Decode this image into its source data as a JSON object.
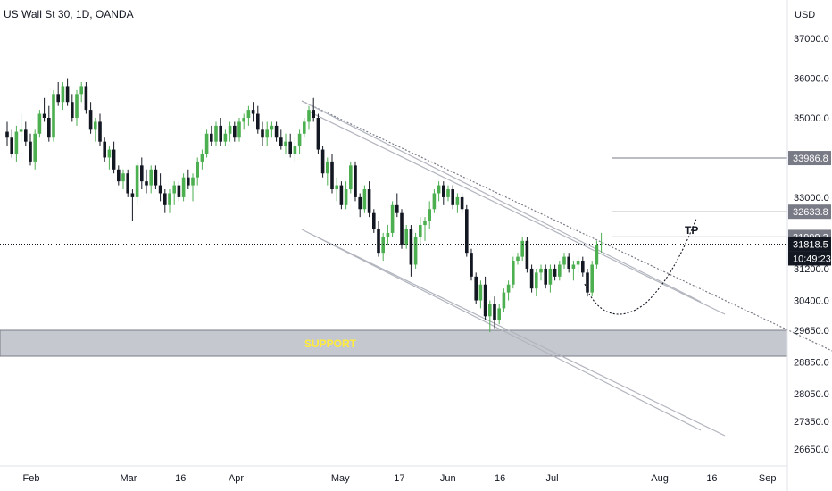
{
  "chart_data": {
    "type": "candlestick",
    "title": "US Wall St 30, 1D, OANDA",
    "currency": "USD",
    "colors": {
      "up": "#26a69a",
      "up_fill": "#4caf50",
      "down": "#131722",
      "support_band": "#b2b5be",
      "support_text": "#ffeb3b",
      "level_line": "#787b86",
      "price_line": "#131722",
      "channel": "#b2b5be",
      "trend": "#787b86"
    },
    "y_axis": {
      "min": 26650,
      "max": 37000,
      "ticks": [
        "37000.0",
        "36000.0",
        "35000.0",
        "33000.0",
        "31200.0",
        "30400.0",
        "29650.0",
        "28850.0",
        "28050.0",
        "27350.0",
        "26650.0"
      ],
      "tick_values": [
        37000,
        36000,
        35000,
        33000,
        31200,
        30400,
        29650,
        28850,
        28050,
        27350,
        26650
      ]
    },
    "x_axis": {
      "ticks": [
        "Feb",
        "Mar",
        "16",
        "Apr",
        "May",
        "17",
        "Jun",
        "16",
        "Jul",
        "Aug",
        "16",
        "Sep"
      ],
      "tick_days": [
        0,
        28,
        43,
        59,
        89,
        106,
        120,
        135,
        150,
        181,
        196,
        212
      ]
    },
    "price_labels": [
      {
        "text": "33986.8",
        "value": 33986.8,
        "style": "level"
      },
      {
        "text": "32633.8",
        "value": 32633.8,
        "style": "level"
      },
      {
        "text": "31999.2",
        "value": 31999.2,
        "style": "level"
      },
      {
        "text": "31818.5",
        "value": 31818.5,
        "style": "current"
      },
      {
        "text": "10:49:23",
        "value": 31818.5,
        "style": "countdown"
      }
    ],
    "levels": [
      {
        "value": 33986.8,
        "from_day": 164
      },
      {
        "value": 32633.8,
        "from_day": 164
      },
      {
        "value": 31999.2,
        "from_day": 164
      }
    ],
    "current_price": 31818.5,
    "support": {
      "label": "SUPPORT",
      "low": 29000,
      "high": 29700
    },
    "annotations": [
      {
        "text": "TP",
        "day": 183,
        "value": 32100
      }
    ],
    "candles": [
      [
        -8,
        34650,
        34900,
        34300,
        34500
      ],
      [
        -7,
        34500,
        34700,
        34000,
        34100
      ],
      [
        -6,
        34100,
        34800,
        33900,
        34650
      ],
      [
        -5,
        34650,
        35100,
        34400,
        34700
      ],
      [
        -4,
        34700,
        34900,
        34300,
        34400
      ],
      [
        -3,
        34400,
        34600,
        33800,
        33900
      ],
      [
        -2,
        33900,
        34700,
        33700,
        34600
      ],
      [
        -1,
        34600,
        35200,
        34500,
        35100
      ],
      [
        0,
        35100,
        35500,
        34900,
        35000
      ],
      [
        1,
        35000,
        35300,
        34400,
        34500
      ],
      [
        2,
        34500,
        35700,
        34400,
        35600
      ],
      [
        3,
        35600,
        35900,
        35300,
        35400
      ],
      [
        4,
        35400,
        35900,
        35200,
        35800
      ],
      [
        5,
        35800,
        36000,
        35300,
        35400
      ],
      [
        6,
        35400,
        35600,
        34900,
        35000
      ],
      [
        7,
        35000,
        35700,
        34800,
        35600
      ],
      [
        8,
        35600,
        35900,
        35400,
        35800
      ],
      [
        9,
        35800,
        35900,
        35100,
        35200
      ],
      [
        10,
        35200,
        35400,
        34600,
        34700
      ],
      [
        11,
        34700,
        35000,
        34400,
        34900
      ],
      [
        12,
        34900,
        35100,
        34300,
        34400
      ],
      [
        13,
        34400,
        34500,
        33900,
        34000
      ],
      [
        14,
        34000,
        34300,
        33700,
        34200
      ],
      [
        15,
        34200,
        34400,
        33600,
        33700
      ],
      [
        16,
        33700,
        33800,
        33300,
        33400
      ],
      [
        17,
        33400,
        33700,
        33200,
        33600
      ],
      [
        18,
        33600,
        33700,
        33000,
        33100
      ],
      [
        19,
        33100,
        33200,
        32400,
        33000
      ],
      [
        20,
        33000,
        33900,
        32800,
        33800
      ],
      [
        21,
        33800,
        34000,
        33200,
        33400
      ],
      [
        22,
        33400,
        33700,
        33100,
        33300
      ],
      [
        23,
        33300,
        33800,
        33100,
        33700
      ],
      [
        24,
        33700,
        33800,
        33200,
        33300
      ],
      [
        25,
        33300,
        33600,
        32900,
        33100
      ],
      [
        26,
        33100,
        33200,
        32600,
        32800
      ],
      [
        27,
        32800,
        33200,
        32600,
        33100
      ],
      [
        28,
        33100,
        33400,
        32800,
        33300
      ],
      [
        29,
        33300,
        33400,
        32900,
        33000
      ],
      [
        30,
        33000,
        33600,
        32900,
        33500
      ],
      [
        31,
        33500,
        33700,
        33200,
        33300
      ],
      [
        32,
        33300,
        33600,
        32900,
        33500
      ],
      [
        33,
        33500,
        34000,
        33300,
        33900
      ],
      [
        34,
        33900,
        34200,
        33700,
        34100
      ],
      [
        35,
        34100,
        34700,
        34000,
        34600
      ],
      [
        36,
        34600,
        34800,
        34300,
        34400
      ],
      [
        37,
        34400,
        34900,
        34300,
        34800
      ],
      [
        38,
        34800,
        35000,
        34300,
        34400
      ],
      [
        39,
        34400,
        34700,
        34300,
        34600
      ],
      [
        40,
        34600,
        34900,
        34400,
        34800
      ],
      [
        41,
        34800,
        34900,
        34400,
        34500
      ],
      [
        42,
        34500,
        35000,
        34400,
        34900
      ],
      [
        43,
        34900,
        35100,
        34700,
        35000
      ],
      [
        44,
        35000,
        35300,
        34800,
        35200
      ],
      [
        45,
        35200,
        35400,
        34900,
        35100
      ],
      [
        46,
        35100,
        35300,
        34600,
        34700
      ],
      [
        47,
        34700,
        34900,
        34300,
        34500
      ],
      [
        48,
        34500,
        34900,
        34300,
        34700
      ],
      [
        49,
        34700,
        34900,
        34500,
        34800
      ],
      [
        50,
        34800,
        34900,
        34400,
        34500
      ],
      [
        51,
        34500,
        34700,
        34200,
        34300
      ],
      [
        52,
        34300,
        34600,
        34100,
        34400
      ],
      [
        53,
        34400,
        34600,
        34000,
        34100
      ],
      [
        54,
        34100,
        34500,
        33900,
        34300
      ],
      [
        55,
        34300,
        34700,
        34100,
        34600
      ],
      [
        56,
        34600,
        35000,
        34500,
        34900
      ],
      [
        57,
        34900,
        35300,
        34700,
        35200
      ],
      [
        58,
        35200,
        35500,
        34900,
        35000
      ],
      [
        59,
        35000,
        35100,
        34100,
        34200
      ],
      [
        60,
        34200,
        34300,
        33500,
        33600
      ],
      [
        61,
        33600,
        34000,
        33300,
        33900
      ],
      [
        62,
        33900,
        34100,
        33100,
        33200
      ],
      [
        63,
        33200,
        33500,
        32900,
        33300
      ],
      [
        64,
        33300,
        33400,
        32700,
        32800
      ],
      [
        65,
        32800,
        33400,
        32700,
        33200
      ],
      [
        66,
        33200,
        33900,
        33100,
        33800
      ],
      [
        67,
        33800,
        33900,
        32900,
        33000
      ],
      [
        68,
        33000,
        33100,
        32500,
        32700
      ],
      [
        69,
        32700,
        33300,
        32600,
        33200
      ],
      [
        70,
        33200,
        33400,
        32500,
        32600
      ],
      [
        71,
        32600,
        32700,
        32100,
        32200
      ],
      [
        72,
        32200,
        32400,
        31500,
        31600
      ],
      [
        73,
        31600,
        32100,
        31400,
        32000
      ],
      [
        74,
        32000,
        32300,
        31800,
        32100
      ],
      [
        75,
        32100,
        32900,
        32000,
        32800
      ],
      [
        76,
        32800,
        33100,
        32500,
        32600
      ],
      [
        77,
        32600,
        32700,
        31700,
        31800
      ],
      [
        78,
        31800,
        32300,
        31700,
        32200
      ],
      [
        79,
        32200,
        32300,
        31000,
        31300
      ],
      [
        80,
        31300,
        32100,
        31200,
        32000
      ],
      [
        81,
        32000,
        32500,
        31800,
        32300
      ],
      [
        82,
        32300,
        32500,
        31900,
        32400
      ],
      [
        83,
        32400,
        32900,
        32200,
        32700
      ],
      [
        84,
        32700,
        33200,
        32600,
        33100
      ],
      [
        85,
        33100,
        33400,
        32900,
        33300
      ],
      [
        86,
        33300,
        33400,
        32800,
        33000
      ],
      [
        87,
        33000,
        33300,
        32900,
        33200
      ],
      [
        88,
        33200,
        33300,
        32700,
        32800
      ],
      [
        89,
        32800,
        33100,
        32600,
        33000
      ],
      [
        90,
        33000,
        33100,
        32600,
        32700
      ],
      [
        91,
        32700,
        32800,
        31500,
        31600
      ],
      [
        92,
        31600,
        31700,
        30900,
        31000
      ],
      [
        93,
        31000,
        31100,
        30300,
        30400
      ],
      [
        94,
        30400,
        30900,
        30200,
        30800
      ],
      [
        95,
        30800,
        31000,
        29900,
        30000
      ],
      [
        96,
        30000,
        30400,
        29600,
        30300
      ],
      [
        97,
        30300,
        30500,
        29700,
        29900
      ],
      [
        98,
        29900,
        30300,
        29800,
        30200
      ],
      [
        99,
        30200,
        30700,
        30100,
        30600
      ],
      [
        100,
        30600,
        30900,
        30400,
        30800
      ],
      [
        101,
        30800,
        31500,
        30700,
        31400
      ],
      [
        102,
        31400,
        31600,
        31300,
        31500
      ],
      [
        103,
        31500,
        32000,
        31400,
        31900
      ],
      [
        104,
        31900,
        32000,
        31100,
        31200
      ],
      [
        105,
        31200,
        31300,
        30600,
        30700
      ],
      [
        106,
        30700,
        31200,
        30500,
        31100
      ],
      [
        107,
        31100,
        31300,
        30900,
        31200
      ],
      [
        108,
        31200,
        31300,
        30700,
        30800
      ],
      [
        109,
        30800,
        31300,
        30600,
        31200
      ],
      [
        110,
        31200,
        31300,
        30900,
        31000
      ],
      [
        111,
        31000,
        31400,
        30900,
        31300
      ],
      [
        112,
        31300,
        31600,
        31200,
        31500
      ],
      [
        113,
        31500,
        31600,
        31100,
        31200
      ],
      [
        114,
        31200,
        31400,
        30900,
        31300
      ],
      [
        115,
        31300,
        31500,
        31100,
        31400
      ],
      [
        116,
        31400,
        31500,
        31000,
        31100
      ],
      [
        117,
        31100,
        31200,
        30500,
        30600
      ],
      [
        118,
        30600,
        31400,
        30500,
        31300
      ],
      [
        119,
        31300,
        31900,
        31200,
        31800
      ],
      [
        120,
        31800,
        32100,
        31600,
        31820
      ]
    ]
  }
}
